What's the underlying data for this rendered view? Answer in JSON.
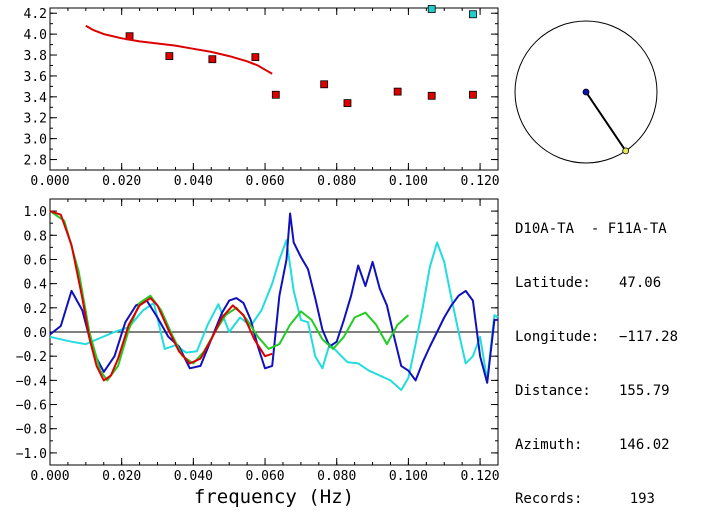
{
  "chart_data": [
    {
      "type": "scatter",
      "xlim": [
        0.0,
        0.125
      ],
      "ylim": [
        2.7,
        4.25
      ],
      "x_ticks": [
        "0.000",
        "0.020",
        "0.040",
        "0.060",
        "0.080",
        "0.100",
        "0.120"
      ],
      "y_ticks": [
        "2.8",
        "3.0",
        "3.2",
        "3.4",
        "3.6",
        "3.8",
        "4.0",
        "4.2"
      ],
      "series": [
        {
          "kind": "points",
          "color": "#dd0000",
          "marker": "square",
          "x": [
            0.0222,
            0.0333,
            0.0453,
            0.0573,
            0.063,
            0.0765,
            0.083,
            0.097,
            0.1065,
            0.118
          ],
          "y": [
            3.98,
            3.79,
            3.76,
            3.78,
            3.42,
            3.52,
            3.34,
            3.45,
            3.41,
            3.42
          ]
        },
        {
          "kind": "points",
          "color": "#22cccc",
          "marker": "square",
          "x": [
            0.1065,
            0.118
          ],
          "y": [
            4.28,
            4.19
          ]
        },
        {
          "kind": "line",
          "color": "#dd0000",
          "x": [
            0.01,
            0.012,
            0.015,
            0.02,
            0.025,
            0.03,
            0.035,
            0.04,
            0.045,
            0.05,
            0.055,
            0.058,
            0.06,
            0.062
          ],
          "y": [
            4.08,
            4.04,
            4.0,
            3.96,
            3.93,
            3.91,
            3.89,
            3.86,
            3.83,
            3.79,
            3.74,
            3.7,
            3.66,
            3.62
          ]
        }
      ]
    },
    {
      "type": "line",
      "xlabel": "frequency (Hz)",
      "xlim": [
        0.0,
        0.125
      ],
      "ylim": [
        -1.1,
        1.1
      ],
      "x_ticks": [
        "0.000",
        "0.020",
        "0.040",
        "0.060",
        "0.080",
        "0.100",
        "0.120"
      ],
      "y_ticks": [
        "1.0",
        "0.8",
        "0.6",
        "0.4",
        "0.2",
        "0.0",
        "−0.2",
        "−0.4",
        "−0.6",
        "−0.8",
        "−1.0"
      ],
      "zero_line": true,
      "series": [
        {
          "color": "#22dddd",
          "x": [
            0.0,
            0.003,
            0.006,
            0.01,
            0.014,
            0.018,
            0.022,
            0.026,
            0.029,
            0.032,
            0.035,
            0.038,
            0.041,
            0.044,
            0.047,
            0.05,
            0.053,
            0.056,
            0.059,
            0.062,
            0.064,
            0.066,
            0.068,
            0.07,
            0.072,
            0.074,
            0.076,
            0.078,
            0.08,
            0.083,
            0.086,
            0.089,
            0.092,
            0.095,
            0.098,
            0.1,
            0.102,
            0.104,
            0.106,
            0.108,
            0.11,
            0.112,
            0.114,
            0.116,
            0.118,
            0.12,
            0.122,
            0.124,
            0.125
          ],
          "y": [
            -0.04,
            -0.06,
            -0.08,
            -0.1,
            -0.05,
            0.0,
            0.04,
            0.18,
            0.24,
            -0.14,
            -0.11,
            -0.17,
            -0.16,
            0.06,
            0.23,
            0.0,
            0.12,
            0.05,
            0.18,
            0.4,
            0.6,
            0.76,
            0.34,
            0.1,
            0.08,
            -0.2,
            -0.3,
            -0.1,
            -0.16,
            -0.25,
            -0.26,
            -0.32,
            -0.36,
            -0.4,
            -0.48,
            -0.38,
            -0.1,
            0.2,
            0.54,
            0.74,
            0.58,
            0.28,
            0.0,
            -0.26,
            -0.2,
            -0.04,
            -0.4,
            0.14,
            0.12
          ]
        },
        {
          "color": "#1111bb",
          "x": [
            0.0,
            0.003,
            0.006,
            0.009,
            0.012,
            0.015,
            0.018,
            0.021,
            0.024,
            0.027,
            0.03,
            0.033,
            0.036,
            0.039,
            0.042,
            0.045,
            0.048,
            0.05,
            0.052,
            0.054,
            0.056,
            0.058,
            0.06,
            0.062,
            0.064,
            0.066,
            0.067,
            0.068,
            0.07,
            0.072,
            0.074,
            0.076,
            0.078,
            0.08,
            0.082,
            0.084,
            0.086,
            0.088,
            0.09,
            0.092,
            0.094,
            0.096,
            0.098,
            0.1,
            0.102,
            0.104,
            0.106,
            0.108,
            0.11,
            0.112,
            0.114,
            0.116,
            0.118,
            0.12,
            0.122,
            0.124,
            0.125
          ],
          "y": [
            -0.02,
            0.05,
            0.34,
            0.18,
            -0.16,
            -0.33,
            -0.2,
            0.08,
            0.22,
            0.26,
            0.12,
            -0.04,
            -0.12,
            -0.3,
            -0.28,
            -0.06,
            0.16,
            0.26,
            0.28,
            0.24,
            0.1,
            -0.12,
            -0.3,
            -0.28,
            0.3,
            0.6,
            0.98,
            0.74,
            0.62,
            0.52,
            0.28,
            0.02,
            -0.12,
            -0.08,
            0.1,
            0.3,
            0.55,
            0.38,
            0.58,
            0.36,
            0.22,
            -0.04,
            -0.28,
            -0.32,
            -0.4,
            -0.25,
            -0.12,
            0.0,
            0.12,
            0.22,
            0.3,
            0.34,
            0.26,
            -0.2,
            -0.42,
            0.1,
            0.1
          ]
        },
        {
          "color": "#22cc22",
          "x": [
            0.0,
            0.004,
            0.008,
            0.011,
            0.014,
            0.016,
            0.019,
            0.022,
            0.025,
            0.028,
            0.031,
            0.034,
            0.037,
            0.04,
            0.043,
            0.046,
            0.049,
            0.052,
            0.055,
            0.058,
            0.061,
            0.064,
            0.067,
            0.07,
            0.073,
            0.076,
            0.079,
            0.082,
            0.085,
            0.088,
            0.091,
            0.094,
            0.097,
            0.1
          ],
          "y": [
            1.0,
            0.92,
            0.5,
            0.0,
            -0.32,
            -0.4,
            -0.28,
            0.02,
            0.24,
            0.3,
            0.18,
            -0.02,
            -0.2,
            -0.26,
            -0.16,
            0.0,
            0.14,
            0.2,
            0.1,
            -0.04,
            -0.14,
            -0.1,
            0.06,
            0.17,
            0.1,
            -0.06,
            -0.14,
            -0.04,
            0.12,
            0.16,
            0.06,
            -0.1,
            0.06,
            0.14
          ]
        },
        {
          "color": "#dd0000",
          "x": [
            0.0,
            0.003,
            0.006,
            0.009,
            0.011,
            0.013,
            0.015,
            0.017,
            0.019,
            0.022,
            0.025,
            0.028,
            0.03,
            0.033,
            0.036,
            0.039,
            0.042,
            0.045,
            0.048,
            0.051,
            0.054,
            0.057,
            0.06,
            0.062
          ],
          "y": [
            1.0,
            0.97,
            0.72,
            0.28,
            -0.05,
            -0.28,
            -0.4,
            -0.36,
            -0.22,
            0.06,
            0.22,
            0.28,
            0.22,
            0.02,
            -0.16,
            -0.26,
            -0.22,
            -0.06,
            0.12,
            0.22,
            0.14,
            -0.06,
            -0.2,
            -0.18
          ]
        }
      ]
    },
    {
      "type": "azimuth-dial",
      "azimuth_deg": 146.02
    }
  ],
  "info": {
    "station_pair": "D10A-TA  - F11A-TA",
    "latitude_label": "Latitude:",
    "latitude": "47.06",
    "longitude_label": "Longitude:",
    "longitude": "−117.28",
    "distance_label": "Distance:",
    "distance": "155.79",
    "azimuth_label": "Azimuth:",
    "azimuth": "146.02",
    "records_label": "Records:",
    "records": "193"
  }
}
